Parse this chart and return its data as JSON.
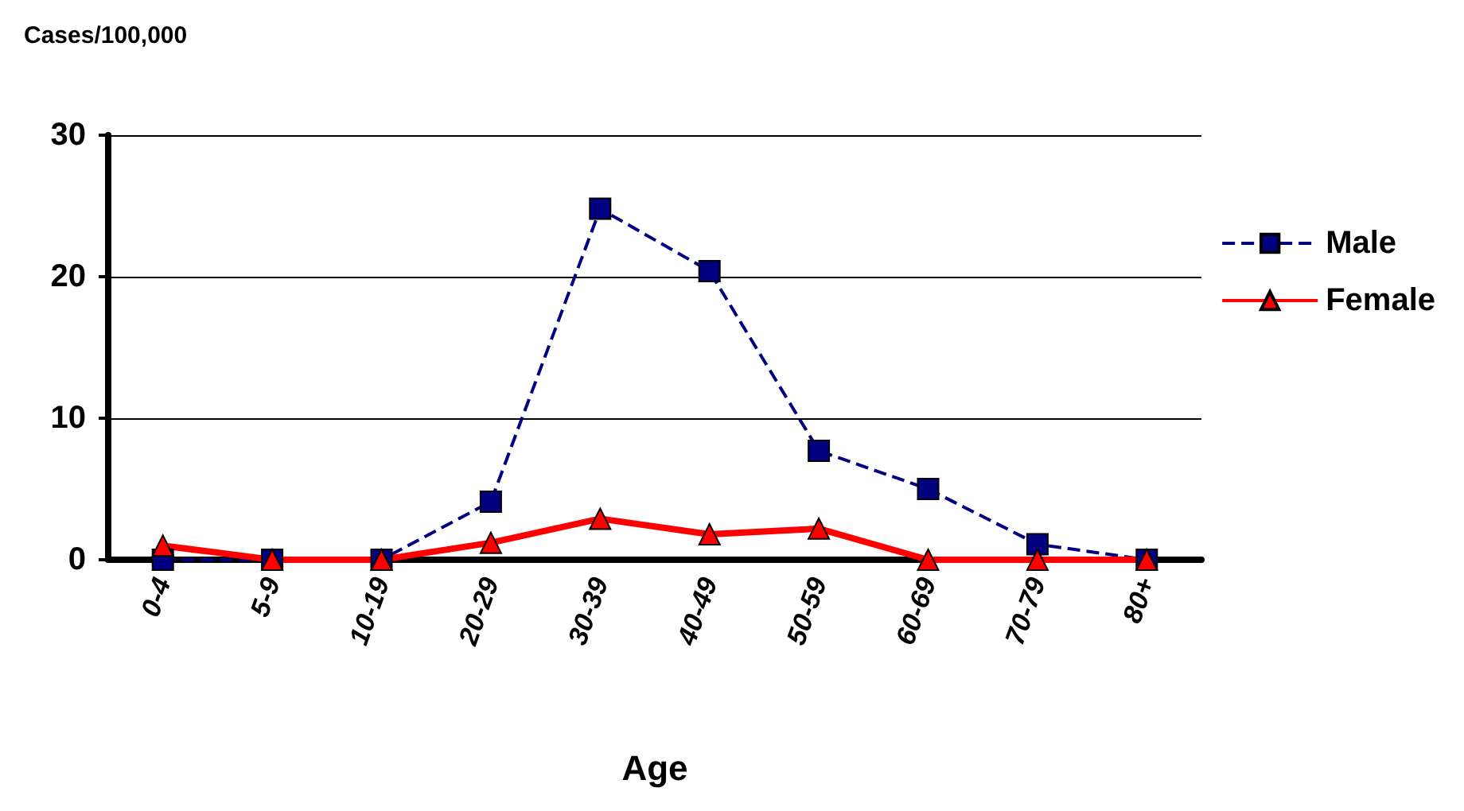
{
  "chart_data": {
    "type": "line",
    "ylabel": "Cases/100,000",
    "xlabel": "Age",
    "categories": [
      "0-4",
      "5-9",
      "10-19",
      "20-29",
      "30-39",
      "40-49",
      "50-59",
      "60-69",
      "70-79",
      "80+"
    ],
    "series": [
      {
        "name": "Male",
        "color": "#000080",
        "marker": "square",
        "line_style": "dashed",
        "values": [
          0,
          0,
          0,
          4.1,
          24.8,
          20.4,
          7.7,
          5.0,
          1.1,
          0
        ]
      },
      {
        "name": "Female",
        "color": "#ff0000",
        "marker": "triangle",
        "line_style": "solid",
        "values": [
          1.0,
          0,
          0,
          1.2,
          2.9,
          1.8,
          2.2,
          0,
          0,
          0
        ]
      }
    ],
    "ylim": [
      0,
      30
    ],
    "yticks": [
      0,
      10,
      20,
      30
    ],
    "grid": "y",
    "legend": "right"
  }
}
